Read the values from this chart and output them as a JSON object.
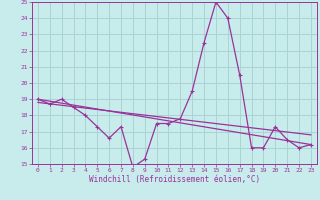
{
  "xlabel": "Windchill (Refroidissement éolien,°C)",
  "background_color": "#c8ecec",
  "grid_color": "#aad4d4",
  "line_color": "#993399",
  "xlim": [
    -0.5,
    23.5
  ],
  "ylim": [
    15,
    25
  ],
  "yticks": [
    15,
    16,
    17,
    18,
    19,
    20,
    21,
    22,
    23,
    24,
    25
  ],
  "xticks": [
    0,
    1,
    2,
    3,
    4,
    5,
    6,
    7,
    8,
    9,
    10,
    11,
    12,
    13,
    14,
    15,
    16,
    17,
    18,
    19,
    20,
    21,
    22,
    23
  ],
  "series1_x": [
    0,
    1,
    2,
    3,
    4,
    5,
    6,
    7,
    8,
    9,
    10,
    11,
    12,
    13,
    14,
    15,
    16,
    17,
    18,
    19,
    20,
    21,
    22,
    23
  ],
  "series1_y": [
    19.0,
    18.7,
    19.0,
    18.5,
    18.0,
    17.3,
    16.6,
    17.3,
    14.8,
    15.3,
    17.5,
    17.5,
    17.8,
    19.5,
    22.5,
    25.0,
    24.0,
    20.5,
    16.0,
    16.0,
    17.3,
    16.5,
    16.0,
    16.2
  ],
  "series2_x": [
    0,
    23
  ],
  "series2_y": [
    19.0,
    16.2
  ],
  "series3_x": [
    0,
    23
  ],
  "series3_y": [
    18.8,
    16.8
  ],
  "marker_size": 3,
  "line_width": 0.9
}
